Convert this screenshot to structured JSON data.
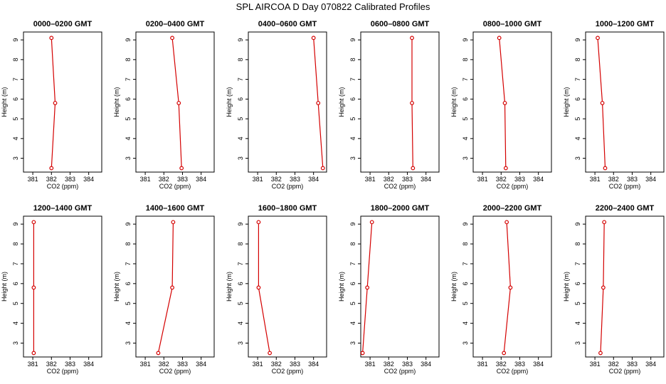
{
  "figure": {
    "title": "SPL AIRCOA D  Day 070822  Calibrated Profiles"
  },
  "chart_data": [
    {
      "type": "line",
      "title": "0000–0200 GMT",
      "xlabel": "CO2 (ppm)",
      "ylabel": "Height (m)",
      "xlim": [
        380.5,
        384.7
      ],
      "ylim": [
        2.3,
        9.4
      ],
      "xticks": [
        381,
        382,
        383,
        384
      ],
      "yticks": [
        3,
        4,
        5,
        6,
        7,
        8,
        9
      ],
      "grid": false,
      "series": [
        {
          "x": [
            382.0,
            382.2,
            382.0
          ],
          "y": [
            2.5,
            5.8,
            9.1
          ],
          "color": "#d40000"
        }
      ]
    },
    {
      "type": "line",
      "title": "0200–0400 GMT",
      "xlabel": "CO2 (ppm)",
      "ylabel": "Height (m)",
      "xlim": [
        380.5,
        384.7
      ],
      "ylim": [
        2.3,
        9.4
      ],
      "xticks": [
        381,
        382,
        383,
        384
      ],
      "yticks": [
        3,
        4,
        5,
        6,
        7,
        8,
        9
      ],
      "grid": false,
      "series": [
        {
          "x": [
            382.95,
            382.8,
            382.45
          ],
          "y": [
            2.5,
            5.8,
            9.1
          ],
          "color": "#d40000"
        }
      ]
    },
    {
      "type": "line",
      "title": "0400–0600 GMT",
      "xlabel": "CO2 (ppm)",
      "ylabel": "Height (m)",
      "xlim": [
        380.5,
        384.7
      ],
      "ylim": [
        2.3,
        9.4
      ],
      "xticks": [
        381,
        382,
        383,
        384
      ],
      "yticks": [
        3,
        4,
        5,
        6,
        7,
        8,
        9
      ],
      "grid": false,
      "series": [
        {
          "x": [
            384.5,
            384.25,
            384.0
          ],
          "y": [
            2.5,
            5.8,
            9.1
          ],
          "color": "#d40000"
        }
      ]
    },
    {
      "type": "line",
      "title": "0600–0800 GMT",
      "xlabel": "CO2 (ppm)",
      "ylabel": "Height (m)",
      "xlim": [
        380.5,
        384.7
      ],
      "ylim": [
        2.3,
        9.4
      ],
      "xticks": [
        381,
        382,
        383,
        384
      ],
      "yticks": [
        3,
        4,
        5,
        6,
        7,
        8,
        9
      ],
      "grid": false,
      "series": [
        {
          "x": [
            383.3,
            383.25,
            383.25
          ],
          "y": [
            2.5,
            5.8,
            9.1
          ],
          "color": "#d40000"
        }
      ]
    },
    {
      "type": "line",
      "title": "0800–1000 GMT",
      "xlabel": "CO2 (ppm)",
      "ylabel": "Height (m)",
      "xlim": [
        380.5,
        384.7
      ],
      "ylim": [
        2.3,
        9.4
      ],
      "xticks": [
        381,
        382,
        383,
        384
      ],
      "yticks": [
        3,
        4,
        5,
        6,
        7,
        8,
        9
      ],
      "grid": false,
      "series": [
        {
          "x": [
            382.25,
            382.2,
            381.9
          ],
          "y": [
            2.5,
            5.8,
            9.1
          ],
          "color": "#d40000"
        }
      ]
    },
    {
      "type": "line",
      "title": "1000–1200 GMT",
      "xlabel": "CO2 (ppm)",
      "ylabel": "Height (m)",
      "xlim": [
        380.5,
        384.7
      ],
      "ylim": [
        2.3,
        9.4
      ],
      "xticks": [
        381,
        382,
        383,
        384
      ],
      "yticks": [
        3,
        4,
        5,
        6,
        7,
        8,
        9
      ],
      "grid": false,
      "series": [
        {
          "x": [
            381.55,
            381.4,
            381.15
          ],
          "y": [
            2.5,
            5.8,
            9.1
          ],
          "color": "#d40000"
        }
      ]
    },
    {
      "type": "line",
      "title": "1200–1400 GMT",
      "xlabel": "CO2 (ppm)",
      "ylabel": "Height (m)",
      "xlim": [
        380.5,
        384.7
      ],
      "ylim": [
        2.3,
        9.4
      ],
      "xticks": [
        381,
        382,
        383,
        384
      ],
      "yticks": [
        3,
        4,
        5,
        6,
        7,
        8,
        9
      ],
      "grid": false,
      "series": [
        {
          "x": [
            381.05,
            381.05,
            381.05
          ],
          "y": [
            2.5,
            5.8,
            9.1
          ],
          "color": "#d40000"
        }
      ]
    },
    {
      "type": "line",
      "title": "1400–1600 GMT",
      "xlabel": "CO2 (ppm)",
      "ylabel": "Height (m)",
      "xlim": [
        380.5,
        384.7
      ],
      "ylim": [
        2.3,
        9.4
      ],
      "xticks": [
        381,
        382,
        383,
        384
      ],
      "yticks": [
        3,
        4,
        5,
        6,
        7,
        8,
        9
      ],
      "grid": false,
      "series": [
        {
          "x": [
            381.7,
            382.45,
            382.5
          ],
          "y": [
            2.5,
            5.8,
            9.1
          ],
          "color": "#d40000"
        }
      ]
    },
    {
      "type": "line",
      "title": "1600–1800 GMT",
      "xlabel": "CO2 (ppm)",
      "ylabel": "Height (m)",
      "xlim": [
        380.5,
        384.7
      ],
      "ylim": [
        2.3,
        9.4
      ],
      "xticks": [
        381,
        382,
        383,
        384
      ],
      "yticks": [
        3,
        4,
        5,
        6,
        7,
        8,
        9
      ],
      "grid": false,
      "series": [
        {
          "x": [
            381.65,
            381.05,
            381.05
          ],
          "y": [
            2.5,
            5.8,
            9.1
          ],
          "color": "#d40000"
        }
      ]
    },
    {
      "type": "line",
      "title": "1800–2000 GMT",
      "xlabel": "CO2 (ppm)",
      "ylabel": "Height (m)",
      "xlim": [
        380.5,
        384.7
      ],
      "ylim": [
        2.3,
        9.4
      ],
      "xticks": [
        381,
        382,
        383,
        384
      ],
      "yticks": [
        3,
        4,
        5,
        6,
        7,
        8,
        9
      ],
      "grid": false,
      "series": [
        {
          "x": [
            380.6,
            380.85,
            381.1
          ],
          "y": [
            2.5,
            5.8,
            9.1
          ],
          "color": "#d40000"
        }
      ]
    },
    {
      "type": "line",
      "title": "2000–2200 GMT",
      "xlabel": "CO2 (ppm)",
      "ylabel": "Height (m)",
      "xlim": [
        380.5,
        384.7
      ],
      "ylim": [
        2.3,
        9.4
      ],
      "xticks": [
        381,
        382,
        383,
        384
      ],
      "yticks": [
        3,
        4,
        5,
        6,
        7,
        8,
        9
      ],
      "grid": false,
      "series": [
        {
          "x": [
            382.15,
            382.5,
            382.3
          ],
          "y": [
            2.5,
            5.8,
            9.1
          ],
          "color": "#d40000"
        }
      ]
    },
    {
      "type": "line",
      "title": "2200–2400 GMT",
      "xlabel": "CO2 (ppm)",
      "ylabel": "Height (m)",
      "xlim": [
        380.5,
        384.7
      ],
      "ylim": [
        2.3,
        9.4
      ],
      "xticks": [
        381,
        382,
        383,
        384
      ],
      "yticks": [
        3,
        4,
        5,
        6,
        7,
        8,
        9
      ],
      "grid": false,
      "series": [
        {
          "x": [
            381.3,
            381.45,
            381.5
          ],
          "y": [
            2.5,
            5.8,
            9.1
          ],
          "color": "#d40000"
        }
      ]
    }
  ]
}
